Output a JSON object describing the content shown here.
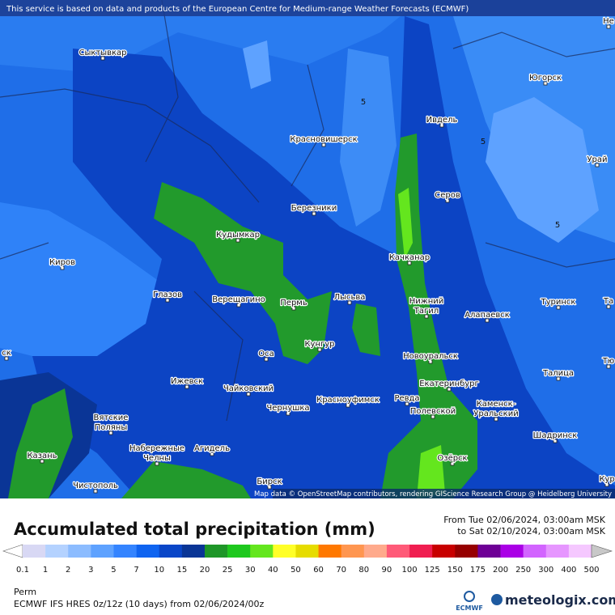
{
  "header": {
    "notice": "This service is based on data and products of the European Centre for Medium-range Weather Forecasts (ECMWF)"
  },
  "map": {
    "cities": [
      {
        "lines": [
          "Сыктывкар"
        ]
      },
      {
        "lines": [
          "Югорск"
        ]
      },
      {
        "lines": [
          "Ивдель"
        ]
      },
      {
        "lines": [
          "Красновишерск"
        ]
      },
      {
        "lines": [
          "Урай"
        ]
      },
      {
        "lines": [
          "Серов"
        ]
      },
      {
        "lines": [
          "Березники"
        ]
      },
      {
        "lines": [
          "Кудымкар"
        ]
      },
      {
        "lines": [
          "Качканар"
        ]
      },
      {
        "lines": [
          "Киров"
        ]
      },
      {
        "lines": [
          "Глазов"
        ]
      },
      {
        "lines": [
          "Верещагино"
        ]
      },
      {
        "lines": [
          "Пермь"
        ]
      },
      {
        "lines": [
          "Лысьва"
        ]
      },
      {
        "lines": [
          "Нижний",
          "Тагил"
        ]
      },
      {
        "lines": [
          "Алапаевск"
        ]
      },
      {
        "lines": [
          "Туринск"
        ]
      },
      {
        "lines": [
          "Оса"
        ]
      },
      {
        "lines": [
          "Кунгур"
        ]
      },
      {
        "lines": [
          "Новоуральск"
        ]
      },
      {
        "lines": [
          "Ижевск"
        ]
      },
      {
        "lines": [
          "Екатеринбург"
        ]
      },
      {
        "lines": [
          "Талица"
        ]
      },
      {
        "lines": [
          "Чайковский"
        ]
      },
      {
        "lines": [
          "Чернушка"
        ]
      },
      {
        "lines": [
          "Красноуфимск"
        ]
      },
      {
        "lines": [
          "Ревда"
        ]
      },
      {
        "lines": [
          "Полевской"
        ]
      },
      {
        "lines": [
          "Каменск-",
          "Уральский"
        ]
      },
      {
        "lines": [
          "Вятские",
          "Поляны"
        ]
      },
      {
        "lines": [
          "Набережные",
          "Челны"
        ]
      },
      {
        "lines": [
          "Агидель"
        ]
      },
      {
        "lines": [
          "Казань"
        ]
      },
      {
        "lines": [
          "Шадринск"
        ]
      },
      {
        "lines": [
          "Озёрск"
        ]
      },
      {
        "lines": [
          "Чистополь"
        ]
      },
      {
        "lines": [
          "Бирск"
        ]
      },
      {
        "lines": [
          "Не"
        ]
      },
      {
        "lines": [
          "Та"
        ]
      },
      {
        "lines": [
          "ск"
        ]
      },
      {
        "lines": [
          "Тю"
        ]
      },
      {
        "lines": [
          "Кур"
        ]
      }
    ],
    "contour_labels": [
      5,
      5,
      5
    ],
    "attribution": "Map data © OpenStreetMap contributors, rendering GIScience Research Group @ Heidelberg University"
  },
  "legend": {
    "title": "Accumulated total precipitation (mm)",
    "from": "From Tue 02/06/2024, 03:00am MSK",
    "to": "to Sat 02/10/2024, 03:00am MSK",
    "labels": [
      0.1,
      1,
      2,
      3,
      5,
      7,
      10,
      15,
      20,
      25,
      30,
      40,
      50,
      60,
      70,
      80,
      90,
      100,
      125,
      150,
      175,
      200,
      250,
      300,
      400,
      500
    ],
    "colors": [
      "#ffffff",
      "#d8d8f4",
      "#b4d2ff",
      "#8cbcff",
      "#5ea2ff",
      "#3484ff",
      "#0f64f0",
      "#0a46c8",
      "#0a3596",
      "#1e9628",
      "#1ec81e",
      "#64e61e",
      "#ffff28",
      "#e6dc00",
      "#ff7800",
      "#ff9650",
      "#ffaa8c",
      "#ff5a78",
      "#f01e50",
      "#c80000",
      "#960000",
      "#6e0096",
      "#aa00e6",
      "#d264ff",
      "#e696ff",
      "#f5c8ff",
      "#fff0ff",
      "#c8c8c8"
    ]
  },
  "footer": {
    "location": "Perm",
    "model": "ECMWF IFS HRES 0z/12z (10 days) from  02/06/2024/00z",
    "ecmwf": "ECMWF",
    "brand": "meteologix.com"
  }
}
